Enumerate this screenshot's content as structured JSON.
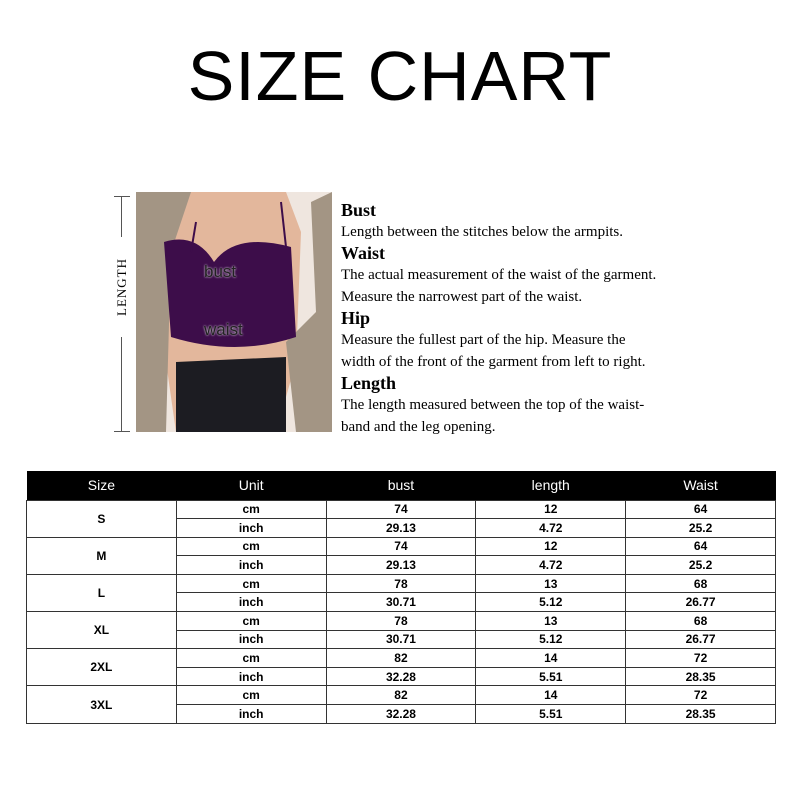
{
  "title": "SIZE CHART",
  "diagram": {
    "length_label": "LENGTH",
    "bust_label": "bust",
    "waist_label": "waist"
  },
  "descriptions": [
    {
      "heading": "Bust",
      "lines": [
        "Length between the stitches below the armpits."
      ]
    },
    {
      "heading": "Waist",
      "lines": [
        "The actual measurement of the waist of the garment.",
        "Measure the narrowest part of the waist."
      ]
    },
    {
      "heading": "Hip",
      "lines": [
        "Measure the fullest part of the  hip. Measure the",
        "width of the front of the garment from left to right."
      ]
    },
    {
      "heading": "Length",
      "lines": [
        "The length measured between the top of the waist-",
        "band and the leg opening."
      ]
    }
  ],
  "table": {
    "headers": [
      "Size",
      "Unit",
      "bust",
      "length",
      "Waist"
    ],
    "rows": [
      {
        "size": "S",
        "cm": [
          "74",
          "12",
          "64"
        ],
        "inch": [
          "29.13",
          "4.72",
          "25.2"
        ]
      },
      {
        "size": "M",
        "cm": [
          "74",
          "12",
          "64"
        ],
        "inch": [
          "29.13",
          "4.72",
          "25.2"
        ]
      },
      {
        "size": "L",
        "cm": [
          "78",
          "13",
          "68"
        ],
        "inch": [
          "30.71",
          "5.12",
          "26.77"
        ]
      },
      {
        "size": "XL",
        "cm": [
          "78",
          "13",
          "68"
        ],
        "inch": [
          "30.71",
          "5.12",
          "26.77"
        ]
      },
      {
        "size": "2XL",
        "cm": [
          "82",
          "14",
          "72"
        ],
        "inch": [
          "32.28",
          "5.51",
          "28.35"
        ]
      },
      {
        "size": "3XL",
        "cm": [
          "82",
          "14",
          "72"
        ],
        "inch": [
          "32.28",
          "5.51",
          "28.35"
        ]
      }
    ],
    "units": [
      "cm",
      "inch"
    ]
  },
  "colors": {
    "garment": "#3d0d4a",
    "coat": "#a39584",
    "skin": "#e3b79c",
    "pants": "#1c1c22"
  }
}
